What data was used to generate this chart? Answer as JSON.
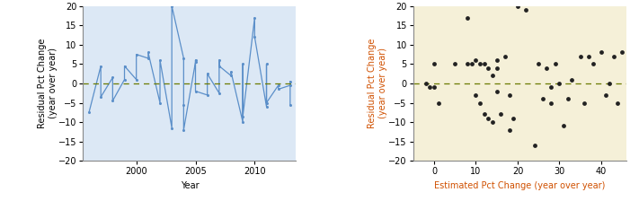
{
  "lx": [
    1996,
    1997,
    1997,
    1998,
    1998,
    1999,
    1999,
    2000,
    2000,
    2001,
    2001,
    2002,
    2002,
    2003,
    2003,
    2004,
    2004,
    2004,
    2005,
    2005,
    2005,
    2006,
    2006,
    2007,
    2007,
    2007,
    2008,
    2008,
    2009,
    2009,
    2009,
    2010,
    2010,
    2011,
    2011,
    2011,
    2012,
    2012,
    2013,
    2013,
    2013
  ],
  "ly": [
    -7.5,
    4.5,
    -3.5,
    1.5,
    -4.5,
    1.0,
    4.5,
    1.0,
    7.5,
    6.5,
    8.0,
    -5.0,
    6.0,
    -11.5,
    20.0,
    6.5,
    -5.5,
    -12.0,
    5.5,
    6.0,
    -2.0,
    -3.0,
    2.5,
    -2.5,
    6.0,
    4.5,
    2.0,
    3.0,
    -10.0,
    5.0,
    -8.5,
    17.0,
    12.0,
    -6.0,
    5.0,
    -5.0,
    -0.5,
    -1.5,
    -0.5,
    0.5,
    -5.5
  ],
  "scatter_x": [
    -2,
    -1,
    0,
    0,
    1,
    5,
    8,
    8,
    9,
    10,
    10,
    11,
    11,
    12,
    12,
    13,
    13,
    14,
    14,
    15,
    15,
    15,
    16,
    17,
    18,
    18,
    19,
    20,
    22,
    24,
    25,
    26,
    27,
    28,
    28,
    29,
    30,
    31,
    32,
    33,
    35,
    36,
    37,
    38,
    40,
    41,
    42,
    43,
    44,
    45
  ],
  "scatter_y": [
    0,
    -1,
    -1,
    5,
    -5,
    5,
    5,
    17,
    5,
    6,
    -3,
    5,
    -5,
    5,
    -8,
    4,
    -9,
    2,
    -10,
    6,
    4,
    -2,
    -8,
    7,
    -3,
    -12,
    -9,
    20,
    19,
    -16,
    5,
    -4,
    4,
    -1,
    -5,
    5,
    0,
    -11,
    -4,
    1,
    7,
    -5,
    7,
    5,
    8,
    -3,
    0,
    7,
    -5,
    8
  ],
  "left_bg": "#dce8f5",
  "right_bg": "#f5f0d8",
  "line_color": "#5b8fc9",
  "dot_color": "#222222",
  "dashed_color": "#6b7a00",
  "ylabel_left": "Residual Pct Change\n(year over year)",
  "ylabel_right": "Residual Pct Change\n(year over year)",
  "xlabel_left": "Year",
  "xlabel_right": "Estimated Pct Change (year over year)",
  "ylim": [
    -20,
    20
  ],
  "xlim_left": [
    1995.5,
    2013.5
  ],
  "xlim_right": [
    -5,
    46
  ],
  "xticks_left": [
    2000,
    2005,
    2010
  ],
  "xticks_right": [
    0,
    10,
    20,
    30,
    40
  ],
  "yticks": [
    -20,
    -15,
    -10,
    -5,
    0,
    5,
    10,
    15,
    20
  ],
  "label_fontsize": 7,
  "tick_fontsize": 7,
  "right_label_color": "#d05000"
}
